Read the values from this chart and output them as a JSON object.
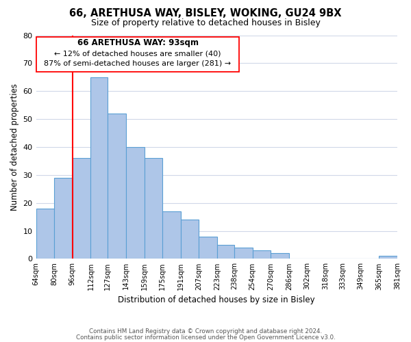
{
  "title": "66, ARETHUSA WAY, BISLEY, WOKING, GU24 9BX",
  "subtitle": "Size of property relative to detached houses in Bisley",
  "xlabel": "Distribution of detached houses by size in Bisley",
  "ylabel": "Number of detached properties",
  "bar_color": "#aec6e8",
  "bar_edge_color": "#5a9fd4",
  "bin_labels": [
    "64sqm",
    "80sqm",
    "96sqm",
    "112sqm",
    "127sqm",
    "143sqm",
    "159sqm",
    "175sqm",
    "191sqm",
    "207sqm",
    "223sqm",
    "238sqm",
    "254sqm",
    "270sqm",
    "286sqm",
    "302sqm",
    "318sqm",
    "333sqm",
    "349sqm",
    "365sqm",
    "381sqm"
  ],
  "values": [
    18,
    29,
    36,
    65,
    52,
    40,
    36,
    17,
    14,
    8,
    5,
    4,
    3,
    2,
    0,
    0,
    0,
    0,
    0,
    1
  ],
  "property_line_label": "66 ARETHUSA WAY: 93sqm",
  "annotation_smaller": "← 12% of detached houses are smaller (40)",
  "annotation_larger": "87% of semi-detached houses are larger (281) →",
  "ylim": [
    0,
    80
  ],
  "yticks": [
    0,
    10,
    20,
    30,
    40,
    50,
    60,
    70,
    80
  ],
  "bin_edges": [
    64,
    80,
    96,
    112,
    127,
    143,
    159,
    175,
    191,
    207,
    223,
    238,
    254,
    270,
    286,
    302,
    318,
    333,
    349,
    365,
    381
  ],
  "footer1": "Contains HM Land Registry data © Crown copyright and database right 2024.",
  "footer2": "Contains public sector information licensed under the Open Government Licence v3.0.",
  "background_color": "#ffffff",
  "grid_color": "#d0d8e8"
}
